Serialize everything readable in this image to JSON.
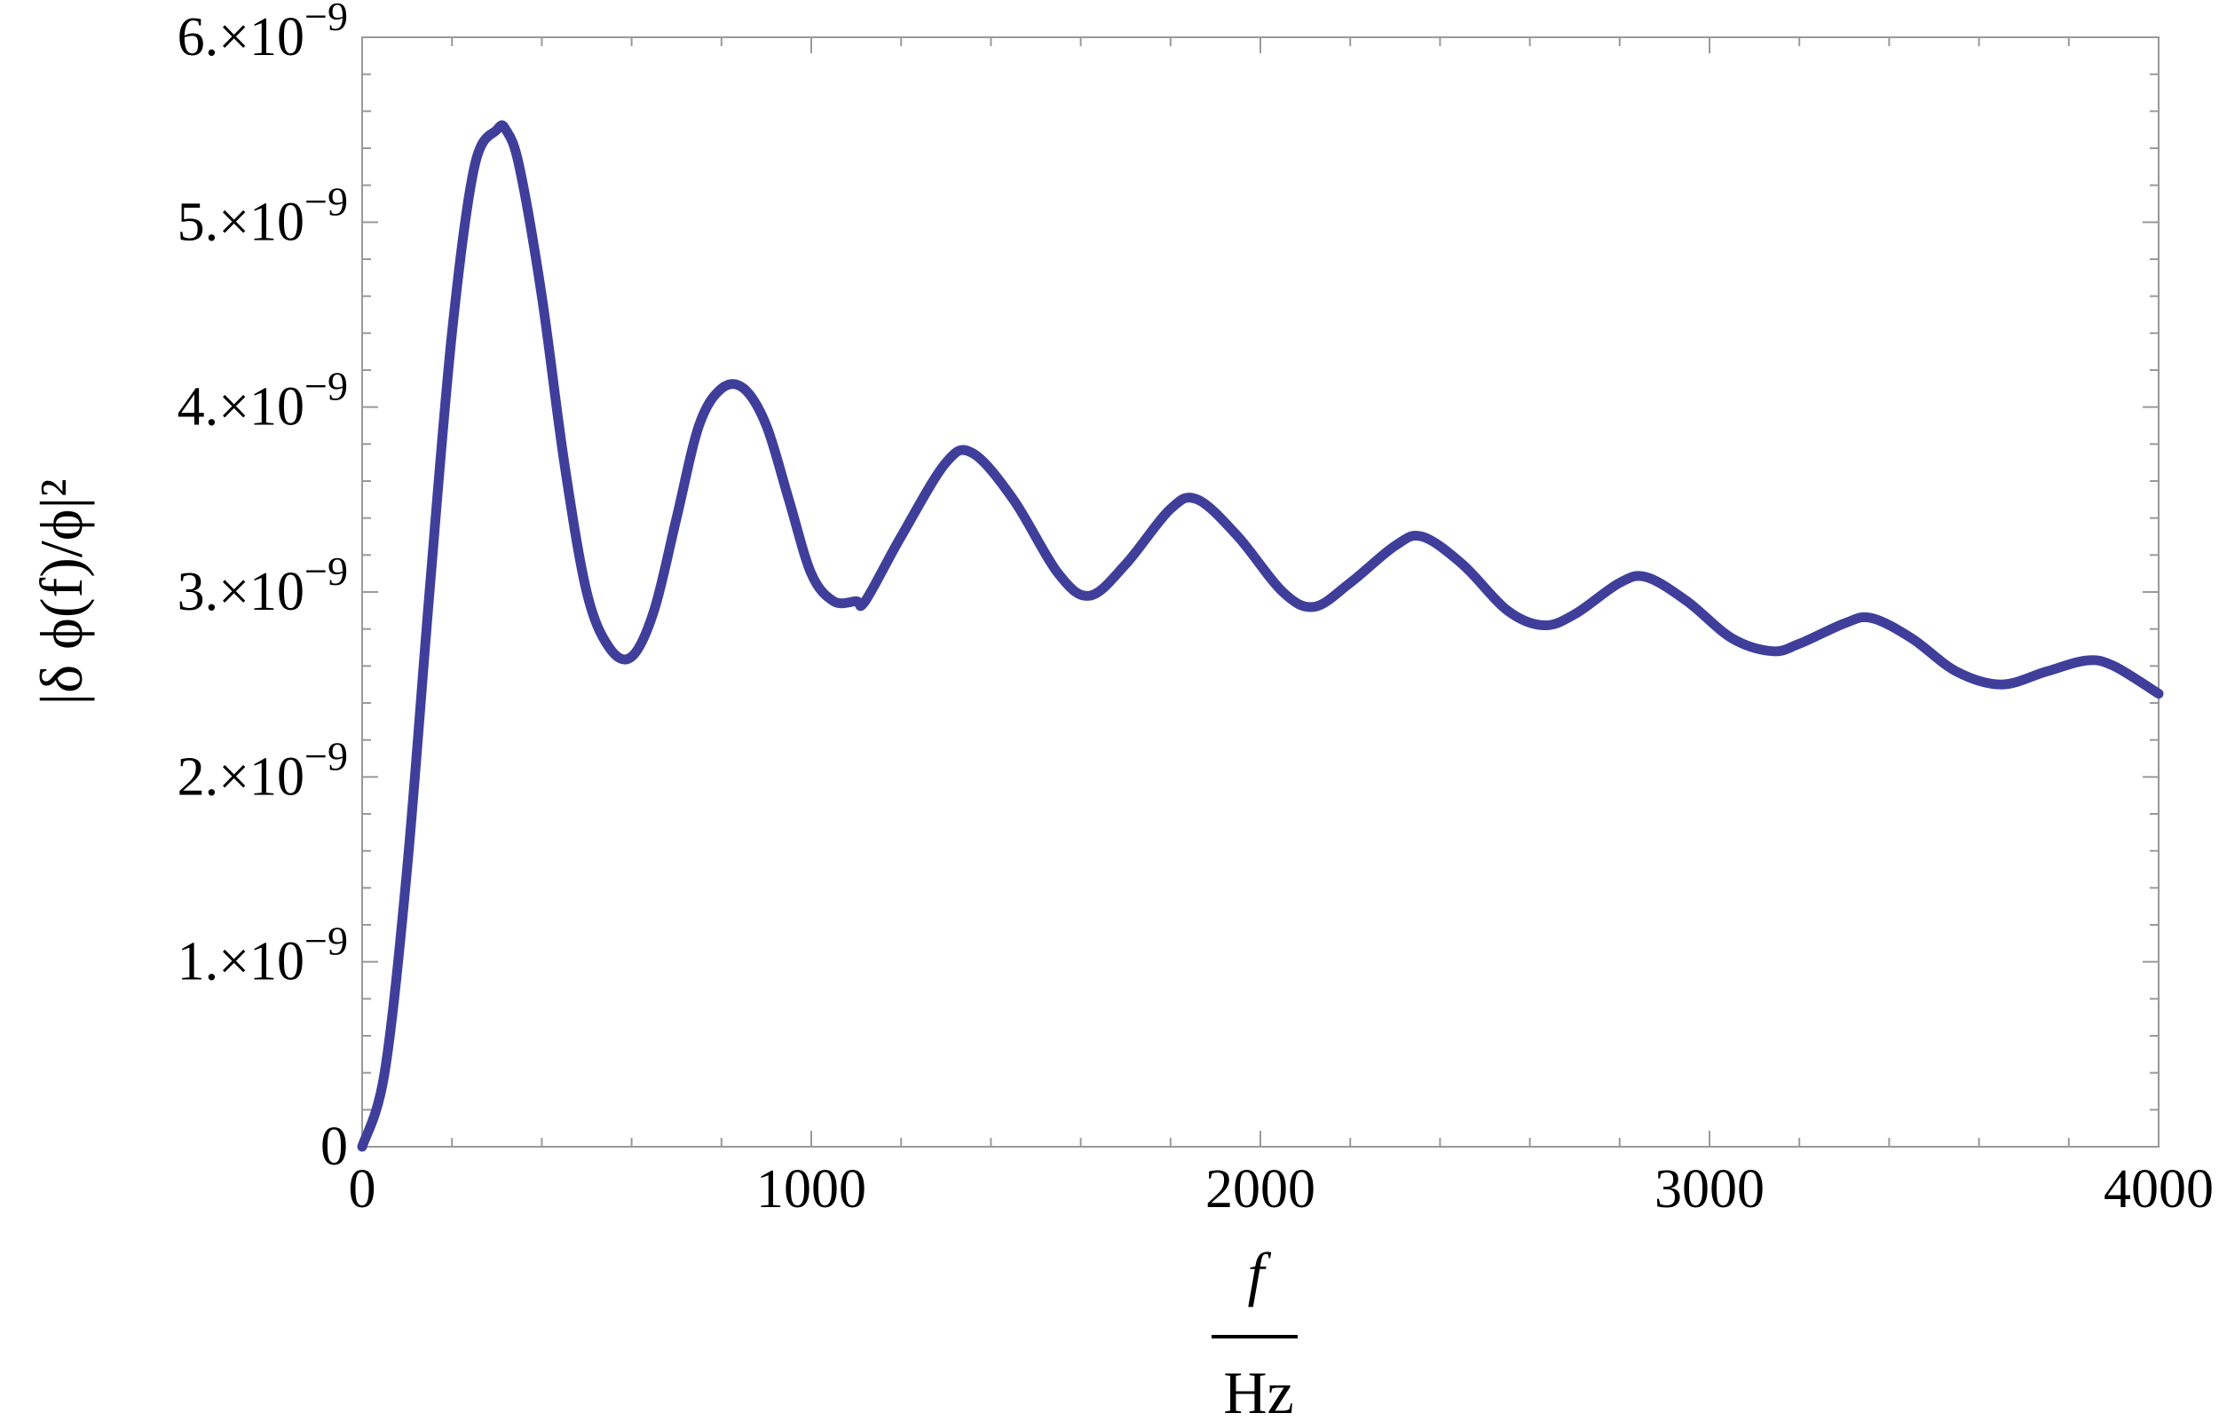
{
  "chart_data": {
    "type": "line",
    "title": "",
    "xlabel_numerator": "f",
    "xlabel_denominator": "Hz",
    "ylabel": "|δ ϕ(f)/ϕ|²",
    "xlim": [
      0,
      4000
    ],
    "ylim": [
      0,
      6e-09
    ],
    "grid": false,
    "x_ticks": [
      {
        "value": 0,
        "label": "0"
      },
      {
        "value": 1000,
        "label": "1000"
      },
      {
        "value": 2000,
        "label": "2000"
      },
      {
        "value": 3000,
        "label": "3000"
      },
      {
        "value": 4000,
        "label": "4000"
      }
    ],
    "y_ticks": [
      {
        "value": 0,
        "mantissa": "0",
        "exponent": ""
      },
      {
        "value": 1e-09,
        "mantissa": "1.×10",
        "exponent": "−9"
      },
      {
        "value": 2e-09,
        "mantissa": "2.×10",
        "exponent": "−9"
      },
      {
        "value": 3e-09,
        "mantissa": "3.×10",
        "exponent": "−9"
      },
      {
        "value": 4e-09,
        "mantissa": "4.×10",
        "exponent": "−9"
      },
      {
        "value": 5e-09,
        "mantissa": "5.×10",
        "exponent": "−9"
      },
      {
        "value": 6e-09,
        "mantissa": "6.×10",
        "exponent": "−9"
      }
    ],
    "series": [
      {
        "color": "#3f3f9b",
        "x": [
          0,
          50,
          100,
          150,
          200,
          250,
          300,
          320,
          350,
          400,
          450,
          500,
          550,
          600,
          650,
          700,
          750,
          800,
          850,
          900,
          950,
          1000,
          1050,
          1100,
          1120,
          1200,
          1300,
          1360,
          1450,
          1550,
          1620,
          1700,
          1800,
          1860,
          1950,
          2050,
          2120,
          2200,
          2300,
          2360,
          2450,
          2550,
          2630,
          2700,
          2800,
          2860,
          2950,
          3050,
          3140,
          3200,
          3300,
          3360,
          3450,
          3550,
          3650,
          3750,
          3840,
          3900,
          4000
        ],
        "y": [
          0,
          4e-10,
          1.5e-09,
          3e-09,
          4.4e-09,
          5.3e-09,
          5.5e-09,
          5.5e-09,
          5.3e-09,
          4.6e-09,
          3.7e-09,
          3e-09,
          2.7e-09,
          2.65e-09,
          2.9e-09,
          3.4e-09,
          3.9e-09,
          4.1e-09,
          4.1e-09,
          3.9e-09,
          3.5e-09,
          3.1e-09,
          2.95e-09,
          2.95e-09,
          2.95e-09,
          3.3e-09,
          3.7e-09,
          3.75e-09,
          3.5e-09,
          3.1e-09,
          2.98e-09,
          3.15e-09,
          3.45e-09,
          3.5e-09,
          3.3e-09,
          3e-09,
          2.92e-09,
          3.05e-09,
          3.25e-09,
          3.3e-09,
          3.15e-09,
          2.9e-09,
          2.82e-09,
          2.88e-09,
          3.05e-09,
          3.08e-09,
          2.95e-09,
          2.75e-09,
          2.68e-09,
          2.72e-09,
          2.83e-09,
          2.86e-09,
          2.75e-09,
          2.57e-09,
          2.5e-09,
          2.57e-09,
          2.63e-09,
          2.6e-09,
          2.45e-09
        ]
      }
    ]
  }
}
